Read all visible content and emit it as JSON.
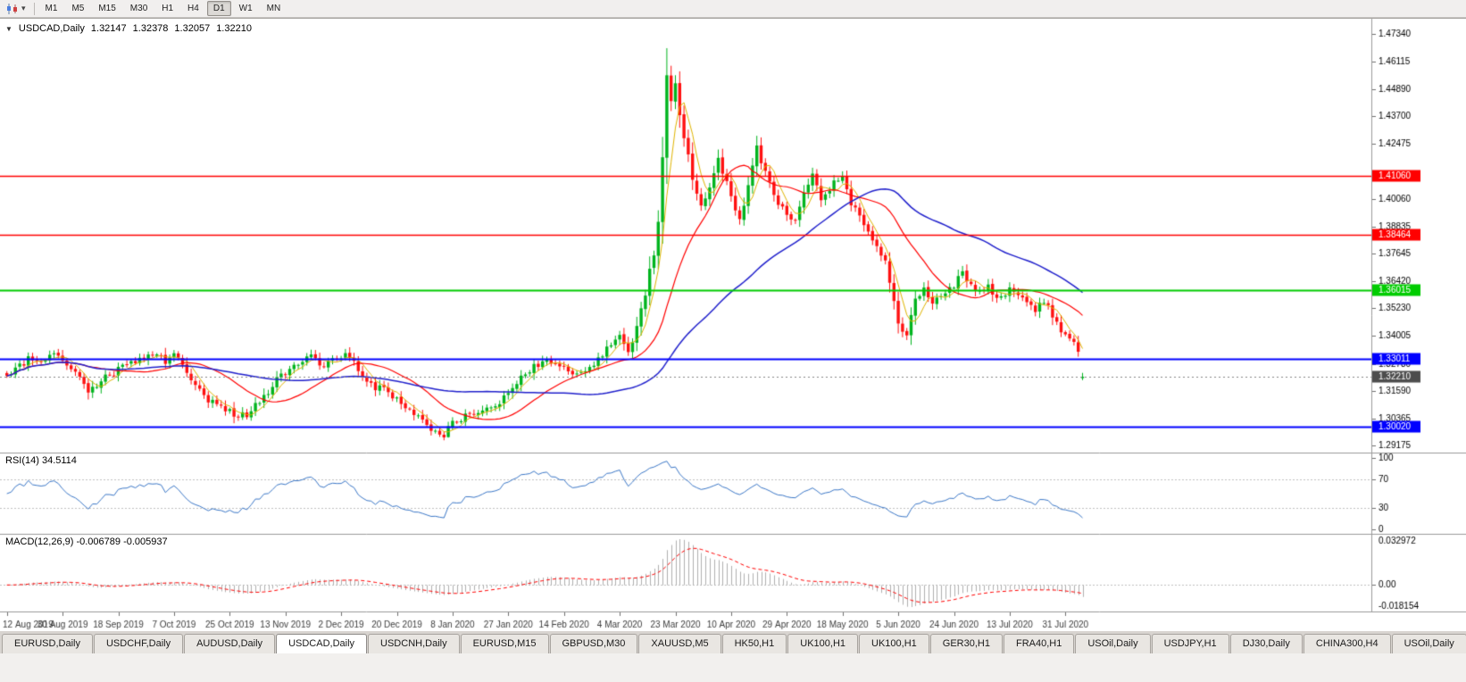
{
  "toolbar": {
    "caret": "▾",
    "timeframes": [
      {
        "label": "M1",
        "active": false
      },
      {
        "label": "M5",
        "active": false
      },
      {
        "label": "M15",
        "active": false
      },
      {
        "label": "M30",
        "active": false
      },
      {
        "label": "H1",
        "active": false
      },
      {
        "label": "H4",
        "active": false
      },
      {
        "label": "D1",
        "active": true
      },
      {
        "label": "W1",
        "active": false
      },
      {
        "label": "MN",
        "active": false
      }
    ]
  },
  "chart": {
    "header": {
      "collapse_icon": "▼",
      "symbol": "USDCAD,Daily",
      "open": "1.32147",
      "high": "1.32378",
      "low": "1.32057",
      "close": "1.32210"
    },
    "candle_colors": {
      "up": "#00b41e",
      "down": "#ff1010"
    },
    "price_ticks": [
      "1.47340",
      "1.46115",
      "1.44890",
      "1.43700",
      "1.42475",
      "1.40060",
      "1.38835",
      "1.37645",
      "1.36420",
      "1.35230",
      "1.34005",
      "1.32780",
      "1.31590",
      "1.30365",
      "1.29175"
    ],
    "hlines": [
      {
        "price": 1.4106,
        "label": "1.41060",
        "color": "#ff0000",
        "width": 1.4
      },
      {
        "price": 1.38464,
        "label": "1.38464",
        "color": "#ff0000",
        "width": 1.4
      },
      {
        "price": 1.36015,
        "label": "1.36015",
        "color": "#00cc00",
        "width": 1.8
      },
      {
        "price": 1.33011,
        "label": "1.33011",
        "color": "#0000ff",
        "width": 1.8
      },
      {
        "price": 1.3002,
        "label": "1.30020",
        "color": "#0000ff",
        "width": 1.8
      }
    ],
    "current_price": {
      "value": 1.3221,
      "label": "1.32210",
      "badge_color": "#4d4d4d",
      "line_color": "#858585"
    }
  },
  "chart_data": {
    "type": "candlestick",
    "symbol": "USDCAD",
    "timeframe": "Daily",
    "bars": 252,
    "y_range": {
      "top": 1.4788,
      "bottom": 1.2902
    },
    "extremes": {
      "max_high": 1.467,
      "min_low": 1.2952
    },
    "last_bar": {
      "o": 1.32147,
      "h": 1.32378,
      "l": 1.32057,
      "c": 1.3221
    },
    "moving_averages": [
      {
        "period": 5,
        "color": "#e0b400",
        "width": 1
      },
      {
        "period": 20,
        "color": "#ff0000",
        "width": 1.2
      },
      {
        "period": 55,
        "color": "#2020cc",
        "width": 1.5
      }
    ],
    "keyframes": [
      [
        0,
        1.3225
      ],
      [
        3,
        1.3275
      ],
      [
        6,
        1.3305
      ],
      [
        9,
        1.329
      ],
      [
        11,
        1.332
      ],
      [
        13,
        1.3295
      ],
      [
        16,
        1.323
      ],
      [
        19,
        1.3165
      ],
      [
        22,
        1.32
      ],
      [
        26,
        1.3255
      ],
      [
        30,
        1.329
      ],
      [
        34,
        1.3315
      ],
      [
        37,
        1.329
      ],
      [
        39,
        1.332
      ],
      [
        41,
        1.327
      ],
      [
        44,
        1.318
      ],
      [
        47,
        1.312
      ],
      [
        50,
        1.3085
      ],
      [
        53,
        1.306
      ],
      [
        56,
        1.3045
      ],
      [
        58,
        1.309
      ],
      [
        61,
        1.316
      ],
      [
        65,
        1.3245
      ],
      [
        68,
        1.329
      ],
      [
        71,
        1.3305
      ],
      [
        74,
        1.3275
      ],
      [
        77,
        1.3305
      ],
      [
        79,
        1.3315
      ],
      [
        82,
        1.3255
      ],
      [
        85,
        1.3185
      ],
      [
        88,
        1.316
      ],
      [
        91,
        1.3125
      ],
      [
        94,
        1.307
      ],
      [
        97,
        1.3015
      ],
      [
        100,
        1.2975
      ],
      [
        102,
        1.2965
      ],
      [
        104,
        1.3015
      ],
      [
        107,
        1.3045
      ],
      [
        110,
        1.306
      ],
      [
        113,
        1.3085
      ],
      [
        117,
        1.3145
      ],
      [
        120,
        1.3215
      ],
      [
        123,
        1.3265
      ],
      [
        126,
        1.329
      ],
      [
        128,
        1.327
      ],
      [
        130,
        1.3255
      ],
      [
        132,
        1.323
      ],
      [
        135,
        1.3255
      ],
      [
        138,
        1.329
      ],
      [
        140,
        1.335
      ],
      [
        143,
        1.339
      ],
      [
        145,
        1.3345
      ],
      [
        147,
        1.343
      ],
      [
        149,
        1.359
      ],
      [
        151,
        1.377
      ],
      [
        152,
        1.392
      ],
      [
        153,
        1.418
      ],
      [
        154,
        1.456
      ],
      [
        155,
        1.442
      ],
      [
        156,
        1.45
      ],
      [
        157,
        1.436
      ],
      [
        158,
        1.427
      ],
      [
        160,
        1.41
      ],
      [
        162,
        1.3985
      ],
      [
        164,
        1.406
      ],
      [
        166,
        1.4175
      ],
      [
        168,
        1.409
      ],
      [
        169,
        1.4015
      ],
      [
        171,
        1.3905
      ],
      [
        173,
        1.407
      ],
      [
        175,
        1.423
      ],
      [
        177,
        1.412
      ],
      [
        179,
        1.402
      ],
      [
        182,
        1.3945
      ],
      [
        184,
        1.3905
      ],
      [
        186,
        1.4045
      ],
      [
        188,
        1.4105
      ],
      [
        190,
        1.4005
      ],
      [
        193,
        1.4075
      ],
      [
        195,
        1.409
      ],
      [
        197,
        1.3985
      ],
      [
        200,
        1.389
      ],
      [
        203,
        1.3795
      ],
      [
        205,
        1.373
      ],
      [
        207,
        1.356
      ],
      [
        208,
        1.3445
      ],
      [
        210,
        1.34
      ],
      [
        212,
        1.3555
      ],
      [
        214,
        1.3625
      ],
      [
        216,
        1.3545
      ],
      [
        218,
        1.3585
      ],
      [
        221,
        1.3625
      ],
      [
        223,
        1.3675
      ],
      [
        225,
        1.362
      ],
      [
        227,
        1.3585
      ],
      [
        229,
        1.3615
      ],
      [
        231,
        1.3575
      ],
      [
        234,
        1.3605
      ],
      [
        236,
        1.358
      ],
      [
        238,
        1.3545
      ],
      [
        240,
        1.3515
      ],
      [
        242,
        1.356
      ],
      [
        244,
        1.3485
      ],
      [
        246,
        1.343
      ],
      [
        247,
        1.3415
      ],
      [
        249,
        1.3375
      ],
      [
        250,
        1.332
      ],
      [
        251,
        1.3221
      ]
    ],
    "date_ticks": [
      [
        0,
        "12 Aug 2019"
      ],
      [
        13,
        "30 Aug 2019"
      ],
      [
        26,
        "18 Sep 2019"
      ],
      [
        39,
        "7 Oct 2019"
      ],
      [
        52,
        "25 Oct 2019"
      ],
      [
        65,
        "13 Nov 2019"
      ],
      [
        78,
        "2 Dec 2019"
      ],
      [
        91,
        "20 Dec 2019"
      ],
      [
        104,
        "8 Jan 2020"
      ],
      [
        117,
        "27 Jan 2020"
      ],
      [
        130,
        "14 Feb 2020"
      ],
      [
        143,
        "4 Mar 2020"
      ],
      [
        156,
        "23 Mar 2020"
      ],
      [
        169,
        "10 Apr 2020"
      ],
      [
        182,
        "29 Apr 2020"
      ],
      [
        195,
        "18 May 2020"
      ],
      [
        208,
        "5 Jun 2020"
      ],
      [
        221,
        "24 Jun 2020"
      ],
      [
        234,
        "13 Jul 2020"
      ],
      [
        247,
        "31 Jul 2020"
      ]
    ]
  },
  "rsi": {
    "title": "RSI(14) 34.5114",
    "period": 14,
    "last_value": 34.5114,
    "line_color": "#3c78c8",
    "levels": [
      70,
      30
    ],
    "scale_labels": [
      {
        "value": 100,
        "label": "100"
      },
      {
        "value": 70,
        "label": "70"
      },
      {
        "value": 30,
        "label": "30"
      },
      {
        "value": 0,
        "label": "0"
      }
    ]
  },
  "macd": {
    "title": "MACD(12,26,9) -0.006789 -0.005937",
    "fast": 12,
    "slow": 26,
    "signal": 9,
    "last_macd": -0.006789,
    "last_signal": -0.005937,
    "histogram_color": "#b0b0b0",
    "signal_color": "#ff0000",
    "scale_top_label": "0.032972",
    "scale_zero_label": "0.00",
    "scale_bottom_label": "-0.018154"
  },
  "tabs": [
    {
      "label": "EURUSD,Daily",
      "active": false
    },
    {
      "label": "USDCHF,Daily",
      "active": false
    },
    {
      "label": "AUDUSD,Daily",
      "active": false
    },
    {
      "label": "USDCAD,Daily",
      "active": true
    },
    {
      "label": "USDCNH,Daily",
      "active": false
    },
    {
      "label": "EURUSD,M15",
      "active": false
    },
    {
      "label": "GBPUSD,M30",
      "active": false
    },
    {
      "label": "XAUUSD,M5",
      "active": false
    },
    {
      "label": "HK50,H1",
      "active": false
    },
    {
      "label": "UK100,H1",
      "active": false
    },
    {
      "label": "UK100,H1",
      "active": false
    },
    {
      "label": "GER30,H1",
      "active": false
    },
    {
      "label": "FRA40,H1",
      "active": false
    },
    {
      "label": "USOil,Daily",
      "active": false
    },
    {
      "label": "USDJPY,H1",
      "active": false
    },
    {
      "label": "DJ30,Daily",
      "active": false
    },
    {
      "label": "CHINA300,H4",
      "active": false
    },
    {
      "label": "USOil,Daily",
      "active": false
    }
  ]
}
